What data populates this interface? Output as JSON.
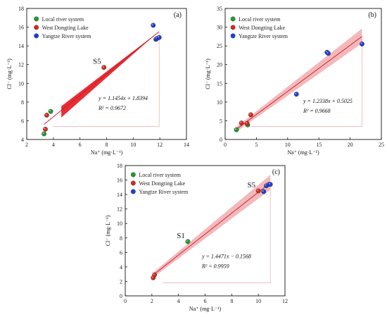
{
  "chart_data": [
    {
      "type": "scatter",
      "panel_label": "(a)",
      "xlabel": "Na⁺ (mg·L⁻¹)",
      "ylabel": "Cl⁻ (mg·L⁻¹)",
      "xlim": [
        2,
        14
      ],
      "ylim": [
        4,
        18
      ],
      "xticks": [
        "2",
        "4",
        "6",
        "8",
        "10",
        "12",
        "14"
      ],
      "yticks": [
        "4",
        "6",
        "8",
        "10",
        "12",
        "14",
        "16",
        "18"
      ],
      "legend": [
        "Local river system",
        "West Dongting Lake",
        "Yangtze River system"
      ],
      "series": [
        {
          "name": "Local river system",
          "color": "#1f9b2e",
          "x": [
            3.3,
            3.8
          ],
          "y": [
            4.6,
            7.0
          ]
        },
        {
          "name": "West Dongting Lake",
          "color": "#d6281f",
          "x": [
            3.4,
            3.5,
            7.8
          ],
          "y": [
            5.1,
            6.6,
            11.7
          ]
        },
        {
          "name": "Yangtze River system",
          "color": "#1e3fd6",
          "x": [
            11.5,
            11.7,
            11.8,
            11.95
          ],
          "y": [
            16.2,
            14.7,
            14.8,
            14.9
          ]
        }
      ],
      "annotations": [
        {
          "text": "S5",
          "x": 7.8,
          "y": 11.7
        }
      ],
      "fit": {
        "slope": 1.1454,
        "intercept": 1.8394,
        "x_range": [
          3.3,
          11.95
        ]
      },
      "equation": "y = 1.1454x + 1.8394",
      "r2_label": "R² = 0.9672"
    },
    {
      "type": "scatter",
      "panel_label": "(b)",
      "xlabel": "Na⁺ (mg·L⁻¹)",
      "ylabel": "Cl⁻ (mg·L⁻¹)",
      "xlim": [
        0,
        25
      ],
      "ylim": [
        0,
        35
      ],
      "xticks": [
        "0",
        "5",
        "10",
        "15",
        "20",
        "25"
      ],
      "yticks": [
        "0",
        "5",
        "10",
        "15",
        "20",
        "25",
        "30",
        "35"
      ],
      "legend": [
        "Local river system",
        "West Dongting Lake",
        "Yangtze River system"
      ],
      "series": [
        {
          "name": "Local river system",
          "color": "#1f9b2e",
          "x": [
            1.8,
            3.6
          ],
          "y": [
            2.6,
            3.9
          ]
        },
        {
          "name": "West Dongting Lake",
          "color": "#d6281f",
          "x": [
            2.6,
            3.5,
            4.1
          ],
          "y": [
            4.4,
            4.3,
            6.6
          ]
        },
        {
          "name": "Yangtze River system",
          "color": "#1e3fd6",
          "x": [
            11.4,
            16.3,
            16.5,
            21.9
          ],
          "y": [
            12.1,
            23.3,
            23.0,
            25.5
          ]
        }
      ],
      "fit": {
        "slope": 1.2338,
        "intercept": 0.5025,
        "x_range": [
          1.8,
          21.9
        ]
      },
      "equation": "y = 1.2338x + 0.5025",
      "r2_label": "R² = 0.9668"
    },
    {
      "type": "scatter",
      "panel_label": "(c)",
      "xlabel": "Na⁺ (mg·L⁻¹)",
      "ylabel": "Cl⁻ (mg·L⁻¹)",
      "xlim": [
        0,
        12
      ],
      "ylim": [
        0,
        18
      ],
      "xticks": [
        "0",
        "2",
        "4",
        "6",
        "8",
        "10",
        "12"
      ],
      "yticks": [
        "0",
        "2",
        "4",
        "6",
        "8",
        "10",
        "12",
        "14",
        "16",
        "18"
      ],
      "legend": [
        "Local river system",
        "West Dongting Lake",
        "Yangtze River system"
      ],
      "series": [
        {
          "name": "Local river system",
          "color": "#1f9b2e",
          "x": [
            4.7
          ],
          "y": [
            7.5
          ]
        },
        {
          "name": "West Dongting Lake",
          "color": "#d6281f",
          "x": [
            2.1,
            2.2,
            10.0
          ],
          "y": [
            2.5,
            2.9,
            14.5
          ]
        },
        {
          "name": "Yangtze River system",
          "color": "#1e3fd6",
          "x": [
            10.4,
            10.6,
            10.8,
            10.9
          ],
          "y": [
            14.4,
            15.2,
            15.4,
            15.4
          ]
        }
      ],
      "annotations": [
        {
          "text": "S1",
          "x": 4.7,
          "y": 7.5
        },
        {
          "text": "S5",
          "x": 10.0,
          "y": 14.5
        }
      ],
      "fit": {
        "slope": 1.4471,
        "intercept": -0.1568,
        "x_range": [
          2.1,
          10.9
        ]
      },
      "equation": "y = 1.4471x − 0.1568",
      "r2_label": "R² = 0.9959"
    }
  ]
}
